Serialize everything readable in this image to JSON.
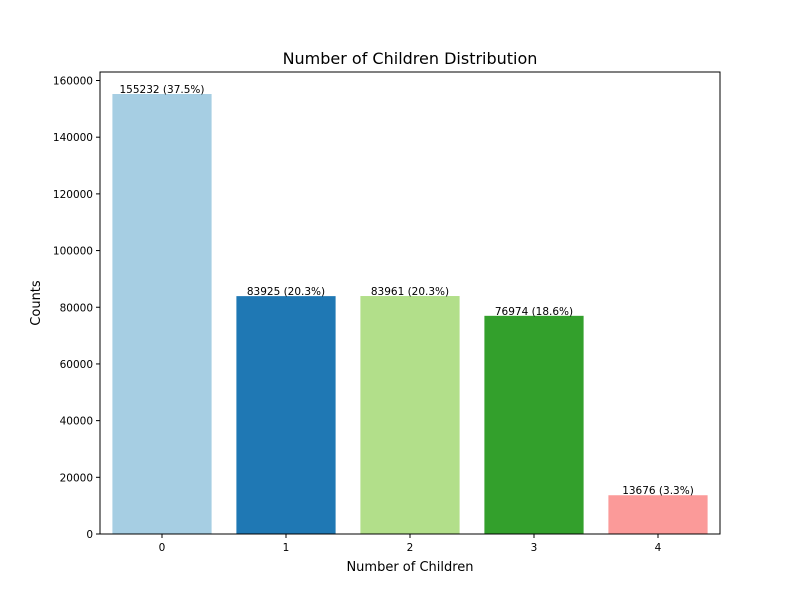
{
  "chart_data": {
    "type": "bar",
    "title": "Number of Children Distribution",
    "xlabel": "Number of Children",
    "ylabel": "Counts",
    "categories": [
      "0",
      "1",
      "2",
      "3",
      "4"
    ],
    "values": [
      155232,
      83925,
      83961,
      76974,
      13676
    ],
    "data_labels": [
      "155232 (37.5%)",
      "83925 (20.3%)",
      "83961 (20.3%)",
      "76974 (18.6%)",
      "13676 (3.3%)"
    ],
    "colors": [
      "#a6cee3",
      "#1f78b4",
      "#b2df8a",
      "#33a02c",
      "#fb9a99"
    ],
    "ylim": [
      0,
      163000
    ],
    "yticks": [
      0,
      20000,
      40000,
      60000,
      80000,
      100000,
      120000,
      140000,
      160000
    ],
    "ytick_labels": [
      "0",
      "20000",
      "40000",
      "60000",
      "80000",
      "100000",
      "120000",
      "140000",
      "160000"
    ],
    "grid": false,
    "legend": "none"
  }
}
